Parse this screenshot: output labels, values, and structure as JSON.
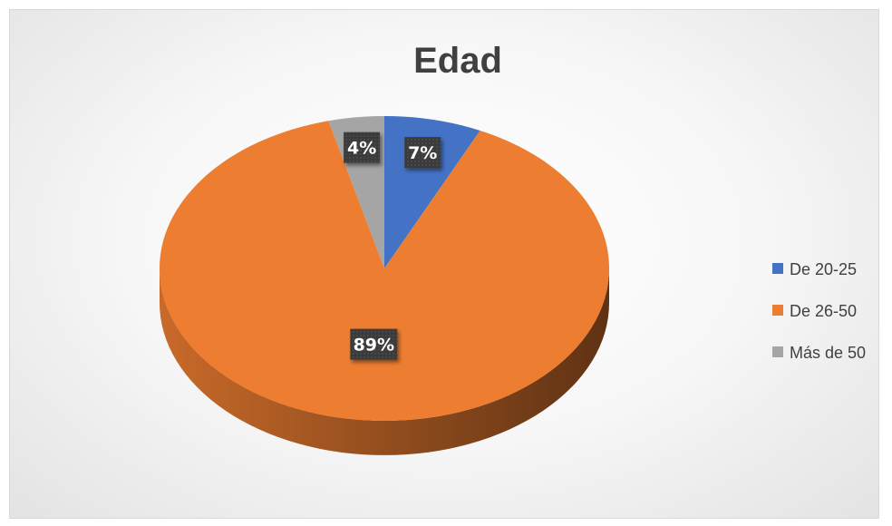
{
  "chart_data": {
    "type": "pie",
    "title": "Edad",
    "categories": [
      "De 20-25",
      "De 26-50",
      "Más de 50"
    ],
    "values": [
      7,
      89,
      4
    ],
    "data_labels": [
      "7%",
      "89%",
      "4%"
    ],
    "colors": [
      "#4472c4",
      "#ed7d31",
      "#a5a5a5"
    ],
    "legend_position": "right",
    "three_d": true
  }
}
